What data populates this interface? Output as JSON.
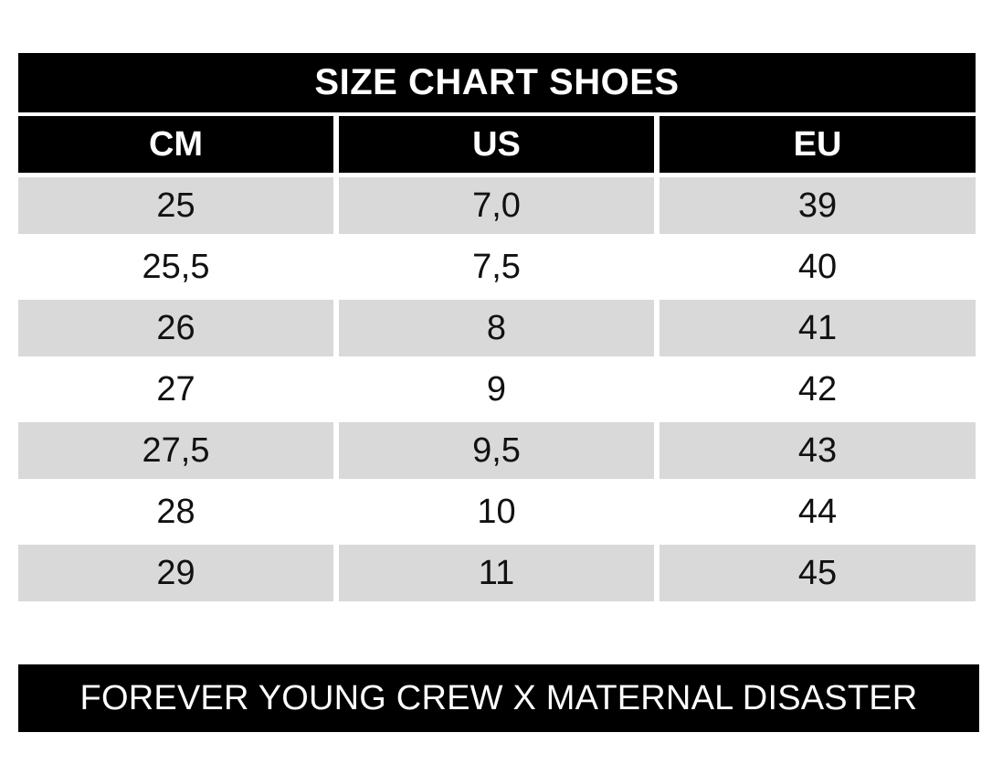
{
  "title": "SIZE CHART SHOES",
  "table": {
    "headers": [
      "CM",
      "US",
      "EU"
    ],
    "rows": [
      [
        "25",
        "7,0",
        "39"
      ],
      [
        "25,5",
        "7,5",
        "40"
      ],
      [
        "26",
        "8",
        "41"
      ],
      [
        "27",
        "9",
        "42"
      ],
      [
        "27,5",
        "9,5",
        "43"
      ],
      [
        "28",
        "10",
        "44"
      ],
      [
        "29",
        "11",
        "45"
      ]
    ]
  },
  "footer": "FOREVER YOUNG CREW X MATERNAL DISASTER",
  "colors": {
    "header_bg": "#000000",
    "header_text": "#ffffff",
    "shaded_row": "#d9d9d9",
    "plain_row": "#ffffff"
  }
}
